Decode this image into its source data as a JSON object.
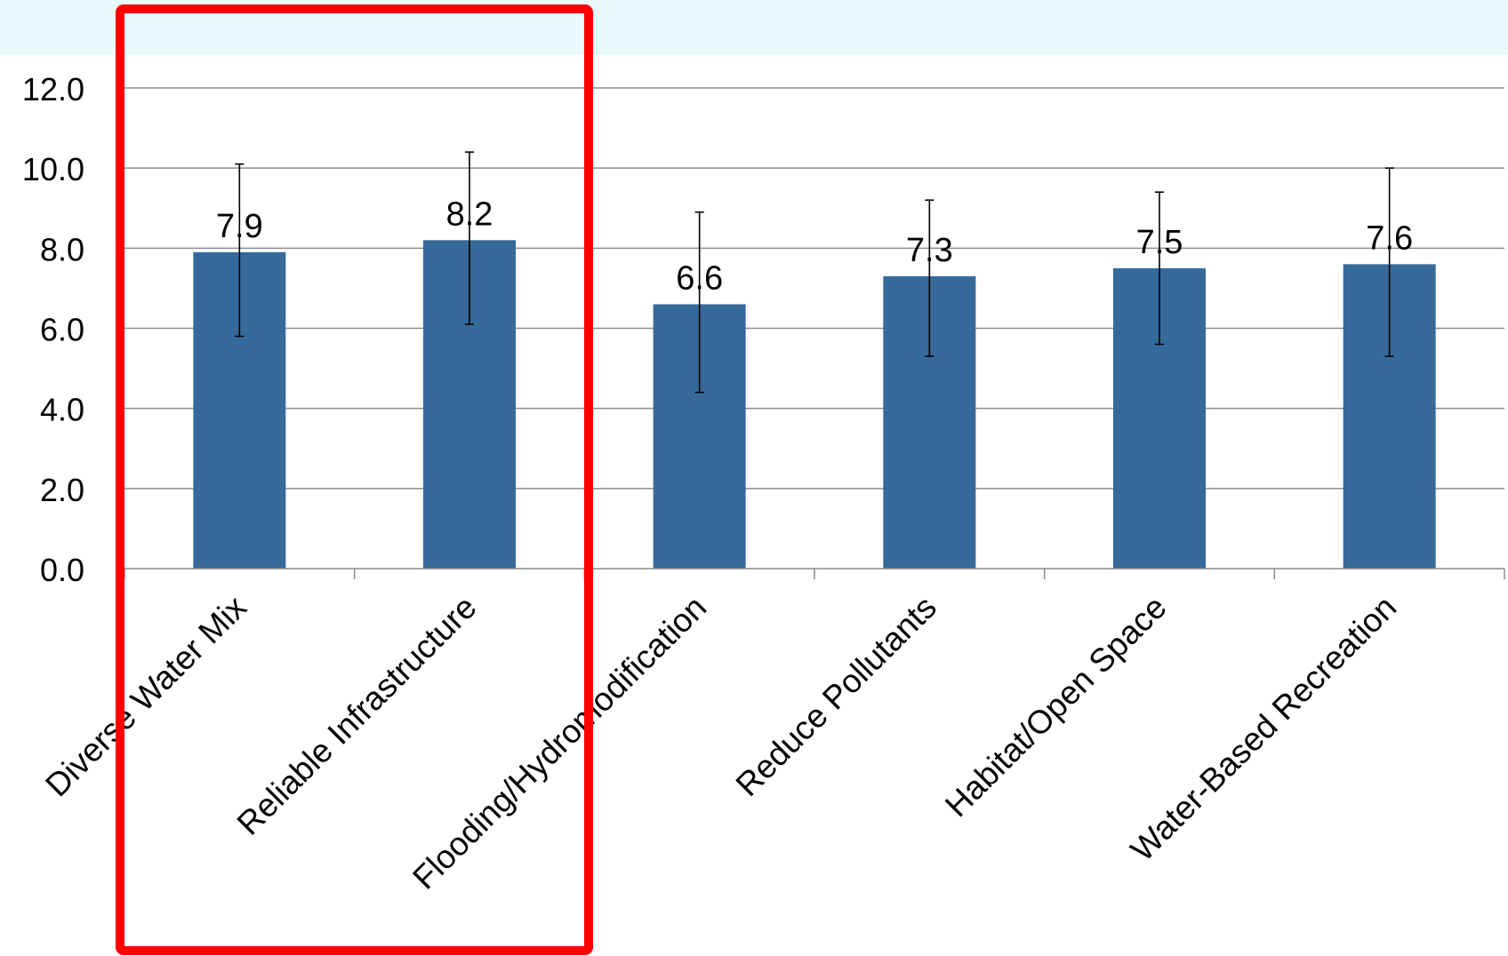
{
  "chart_data": {
    "type": "bar",
    "categories": [
      "Diverse Water Mix",
      "Reliable Infrastructure",
      "Flooding/Hydromodification",
      "Reduce Pollutants",
      "Habitat/Open Space",
      "Water-Based Recreation"
    ],
    "values": [
      7.9,
      8.2,
      6.6,
      7.3,
      7.5,
      7.6
    ],
    "value_labels": [
      "7.9",
      "8.2",
      "6.6",
      "7.3",
      "7.5",
      "7.6"
    ],
    "error_bars": [
      {
        "low": 5.8,
        "high": 10.1
      },
      {
        "low": 6.1,
        "high": 10.4
      },
      {
        "low": 4.4,
        "high": 8.9
      },
      {
        "low": 5.3,
        "high": 9.2
      },
      {
        "low": 5.6,
        "high": 9.4
      },
      {
        "low": 5.3,
        "high": 10.0
      }
    ],
    "ylim": [
      0,
      12
    ],
    "yticks": [
      0,
      2,
      4,
      6,
      8,
      10,
      12
    ],
    "ytick_labels": [
      "0.0",
      "2.0",
      "4.0",
      "6.0",
      "8.0",
      "10.0",
      "12.0"
    ],
    "title": "",
    "xlabel": "",
    "ylabel": "",
    "grid": true,
    "legend": "none",
    "colors": {
      "bar": "#366a9b",
      "grid": "#8c8c8c",
      "highlight_box": "#ff0000",
      "header_band": "#eaf9fb"
    },
    "annotation": "highlight-box"
  }
}
